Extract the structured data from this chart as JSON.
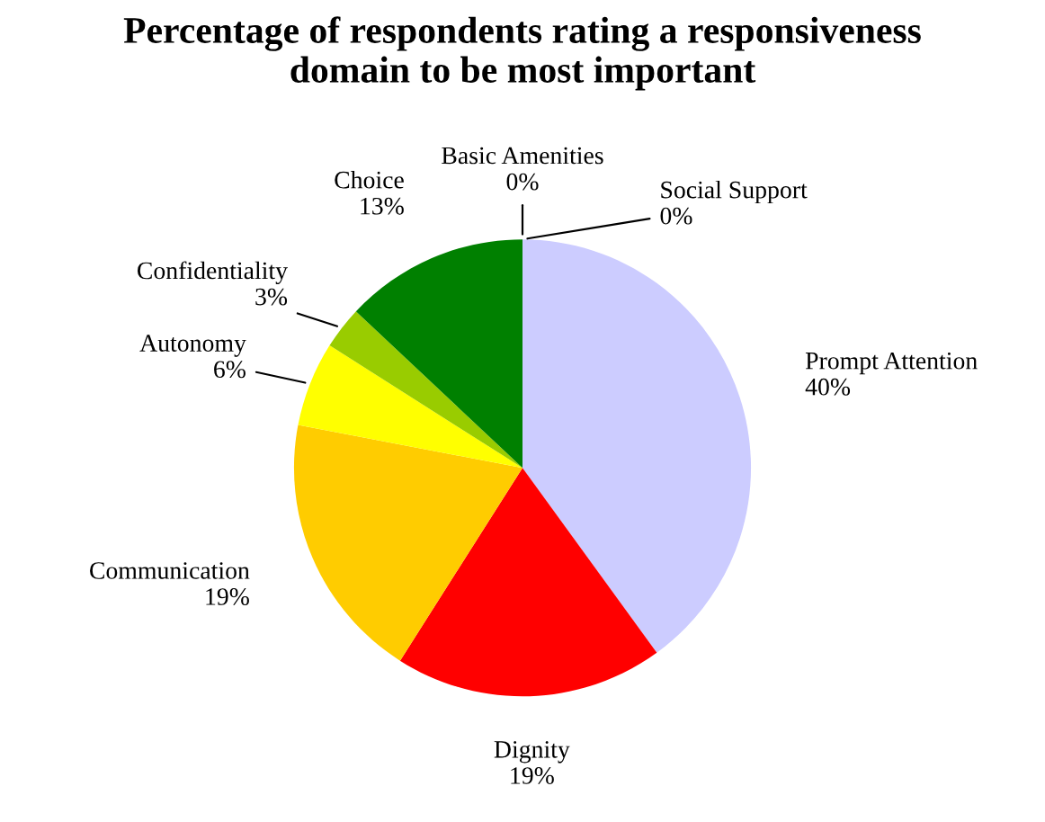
{
  "chart_data": {
    "type": "pie",
    "title": "Percentage of respondents rating a responsiveness\ndomain to be most important",
    "categories": [
      "Prompt Attention",
      "Dignity",
      "Communication",
      "Autonomy",
      "Confidentiality",
      "Choice",
      "Basic Amenities",
      "Social Support"
    ],
    "values": [
      40,
      19,
      19,
      6,
      3,
      13,
      0,
      0
    ],
    "colors": [
      "#ccccff",
      "#ff0000",
      "#ffcc00",
      "#ffff00",
      "#99cc00",
      "#008000",
      "#000080",
      "#ff00ff"
    ],
    "value_labels": [
      "40%",
      "19%",
      "19%",
      "6%",
      "3%",
      "13%",
      "0%",
      "0%"
    ]
  }
}
